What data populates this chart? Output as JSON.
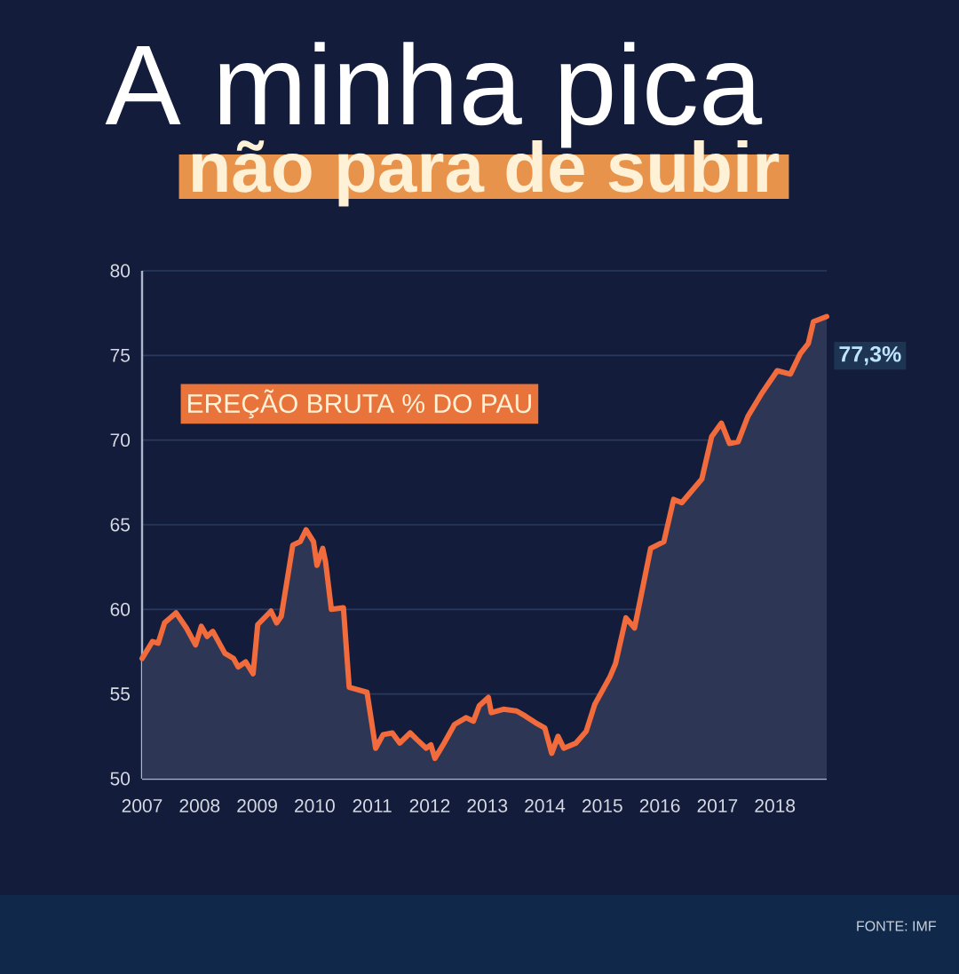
{
  "chart_data": {
    "type": "area",
    "title": "A minha pica",
    "subtitle": "não para de subir",
    "annotations": [
      "EREÇÃO BRUTA % DO PAU",
      {
        "text": "77,3%",
        "x": 2018.9,
        "y": 77.3
      },
      "FONTE: IMF"
    ],
    "x": [
      2007.0,
      2007.18,
      2007.28,
      2007.39,
      2007.59,
      2007.77,
      2007.93,
      2008.03,
      2008.13,
      2008.23,
      2008.44,
      2008.59,
      2008.67,
      2008.8,
      2008.93,
      2009.01,
      2009.24,
      2009.34,
      2009.42,
      2009.62,
      2009.75,
      2009.85,
      2009.98,
      2010.04,
      2010.14,
      2010.19,
      2010.29,
      2010.5,
      2010.6,
      2010.7,
      2010.91,
      2011.06,
      2011.19,
      2011.35,
      2011.48,
      2011.66,
      2011.78,
      2011.94,
      2012.02,
      2012.09,
      2012.25,
      2012.43,
      2012.63,
      2012.76,
      2012.86,
      2013.02,
      2013.07,
      2013.28,
      2013.51,
      2013.66,
      2013.84,
      2014.0,
      2014.12,
      2014.23,
      2014.33,
      2014.54,
      2014.72,
      2014.87,
      2015.13,
      2015.23,
      2015.41,
      2015.56,
      2015.84,
      2016.07,
      2016.24,
      2016.38,
      2016.73,
      2016.9,
      2017.07,
      2017.21,
      2017.36,
      2017.53,
      2017.76,
      2018.04,
      2018.27,
      2018.44,
      2018.58,
      2018.67,
      2018.9
    ],
    "series": [
      {
        "color": "#f26b3c",
        "values": [
          57.1,
          58.1,
          58.0,
          59.2,
          59.8,
          58.9,
          57.9,
          59.0,
          58.4,
          58.7,
          57.4,
          57.1,
          56.6,
          56.9,
          56.2,
          59.1,
          59.9,
          59.2,
          59.6,
          63.8,
          64.0,
          64.7,
          64.0,
          62.6,
          63.6,
          62.8,
          60.0,
          60.1,
          55.4,
          55.3,
          55.1,
          51.8,
          52.6,
          52.7,
          52.1,
          52.7,
          52.3,
          51.8,
          52.0,
          51.2,
          52.1,
          53.2,
          53.6,
          53.4,
          54.3,
          54.8,
          53.9,
          54.1,
          54.0,
          53.7,
          53.3,
          53.0,
          51.5,
          52.5,
          51.8,
          52.1,
          52.8,
          54.4,
          56.0,
          56.8,
          59.5,
          58.9,
          63.6,
          64.0,
          66.5,
          66.3,
          67.7,
          70.2,
          71.0,
          69.8,
          69.9,
          71.4,
          72.7,
          74.1,
          73.9,
          75.1,
          75.7,
          77.0,
          77.3
        ]
      }
    ],
    "xlim": [
      2007,
      2018.9
    ],
    "ylim": [
      50,
      80
    ],
    "xticks": [
      2007,
      2008,
      2009,
      2010,
      2011,
      2012,
      2013,
      2014,
      2015,
      2016,
      2017,
      2018
    ],
    "yticks": [
      50,
      55,
      60,
      65,
      70,
      75,
      80
    ],
    "grid": "y"
  }
}
